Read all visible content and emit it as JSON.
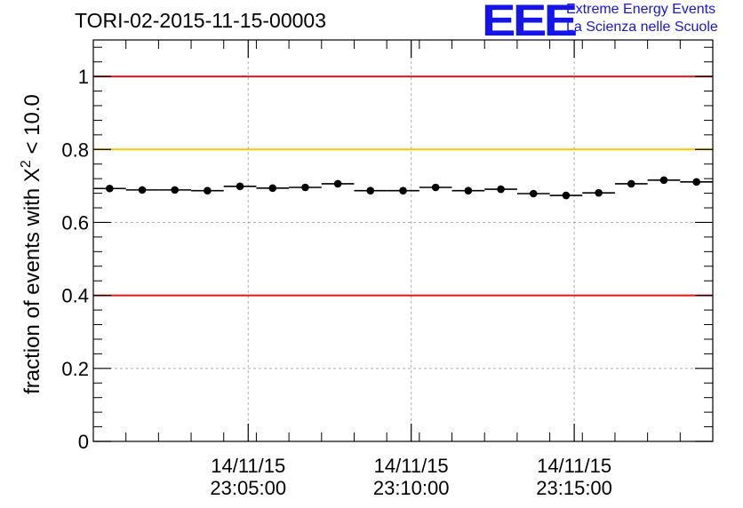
{
  "header": {
    "title": "TORI-02-2015-11-15-00003",
    "logo_mark": "EEE",
    "logo_line1": "Extreme Energy Events",
    "logo_line2": "La Scienza nelle Scuole"
  },
  "colors": {
    "axis": "#000000",
    "grid": "#b0b0b0",
    "data": "#000000",
    "red_line": "#e8141a",
    "yellow_line": "#ffc400",
    "logo": "#1515e8"
  },
  "chart_data": {
    "type": "scatter",
    "title": "TORI-02-2015-11-15-00003",
    "xlabel": "",
    "ylabel": "fraction of events with χ² < 10.0",
    "ylabel_parts": {
      "prefix": "fraction of events with X",
      "sup": "2",
      "suffix": " < 10.0"
    },
    "xlim": [
      0,
      19
    ],
    "ylim": [
      0,
      1.1
    ],
    "grid": true,
    "y_ticks": [
      {
        "value": 0,
        "label": "0"
      },
      {
        "value": 0.2,
        "label": "0.2"
      },
      {
        "value": 0.4,
        "label": "0.4"
      },
      {
        "value": 0.6,
        "label": "0.6"
      },
      {
        "value": 0.8,
        "label": "0.8"
      },
      {
        "value": 1.0,
        "label": "1"
      }
    ],
    "x_major_ticks": [
      {
        "value": 4.75,
        "date": "14/11/15",
        "time": "23:05:00"
      },
      {
        "value": 9.75,
        "date": "14/11/15",
        "time": "23:10:00"
      },
      {
        "value": 14.75,
        "date": "14/11/15",
        "time": "23:15:00"
      }
    ],
    "reference_lines": [
      {
        "value": 1.0,
        "color": "#e8141a"
      },
      {
        "value": 0.8,
        "color": "#ffc400"
      },
      {
        "value": 0.4,
        "color": "#e8141a"
      }
    ],
    "points": [
      {
        "x": 0.5,
        "y": 0.693
      },
      {
        "x": 1.5,
        "y": 0.689
      },
      {
        "x": 2.5,
        "y": 0.689
      },
      {
        "x": 3.5,
        "y": 0.687
      },
      {
        "x": 4.5,
        "y": 0.699
      },
      {
        "x": 5.5,
        "y": 0.694
      },
      {
        "x": 6.5,
        "y": 0.696
      },
      {
        "x": 7.5,
        "y": 0.706
      },
      {
        "x": 8.5,
        "y": 0.687
      },
      {
        "x": 9.5,
        "y": 0.687
      },
      {
        "x": 10.5,
        "y": 0.696
      },
      {
        "x": 11.5,
        "y": 0.687
      },
      {
        "x": 12.5,
        "y": 0.691
      },
      {
        "x": 13.5,
        "y": 0.679
      },
      {
        "x": 14.5,
        "y": 0.674
      },
      {
        "x": 15.5,
        "y": 0.681
      },
      {
        "x": 16.5,
        "y": 0.706
      },
      {
        "x": 17.5,
        "y": 0.716
      },
      {
        "x": 18.5,
        "y": 0.711
      }
    ]
  }
}
